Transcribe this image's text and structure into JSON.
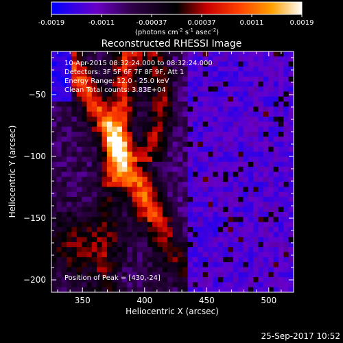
{
  "chart_data": {
    "type": "heatmap",
    "title": "Reconstructed RHESSI Image",
    "colorbar": {
      "ticks": [
        "-0.0019",
        "-0.0011",
        "-0.00037",
        "0.00037",
        "0.0011",
        "0.0019"
      ],
      "units_main": "(photons cm",
      "units_sup1": "-2",
      "units_mid1": " s",
      "units_sup2": "-1",
      "units_mid2": " asec",
      "units_sup3": "-2",
      "units_end": ")",
      "range": [
        -0.0019,
        0.0019
      ],
      "colors": [
        "#0000ff",
        "#6a00c8",
        "#000000",
        "#c80000",
        "#ff4000",
        "#ffa000",
        "#ffffff"
      ]
    },
    "xlabel": "Heliocentric X (arcsec)",
    "ylabel": "Heliocentric Y (arcsec)",
    "xlim": [
      325,
      520
    ],
    "ylim": [
      -210,
      -15
    ],
    "xticks": [
      {
        "value": 350,
        "label": "350"
      },
      {
        "value": 400,
        "label": "400"
      },
      {
        "value": 450,
        "label": "450"
      },
      {
        "value": 500,
        "label": "500"
      }
    ],
    "yticks": [
      {
        "value": -50,
        "label": "−50"
      },
      {
        "value": -100,
        "label": "−100"
      },
      {
        "value": -150,
        "label": "−150"
      },
      {
        "value": -200,
        "label": "−200"
      }
    ],
    "annotations": [
      "10-Apr-2015 08:32:24.000 to 08:32:24.000",
      "Detectors: 3F 5F 6F 7F 8F 9F, Att 1",
      "Energy Range: 12.0 - 25.0 keV",
      "Clean   Total counts: 3.83E+04"
    ],
    "peak_label": "Position of Peak = [430,-24]",
    "peak": [
      430,
      -24
    ]
  },
  "footer": {
    "date": "25-Sep-2017 10:52"
  }
}
